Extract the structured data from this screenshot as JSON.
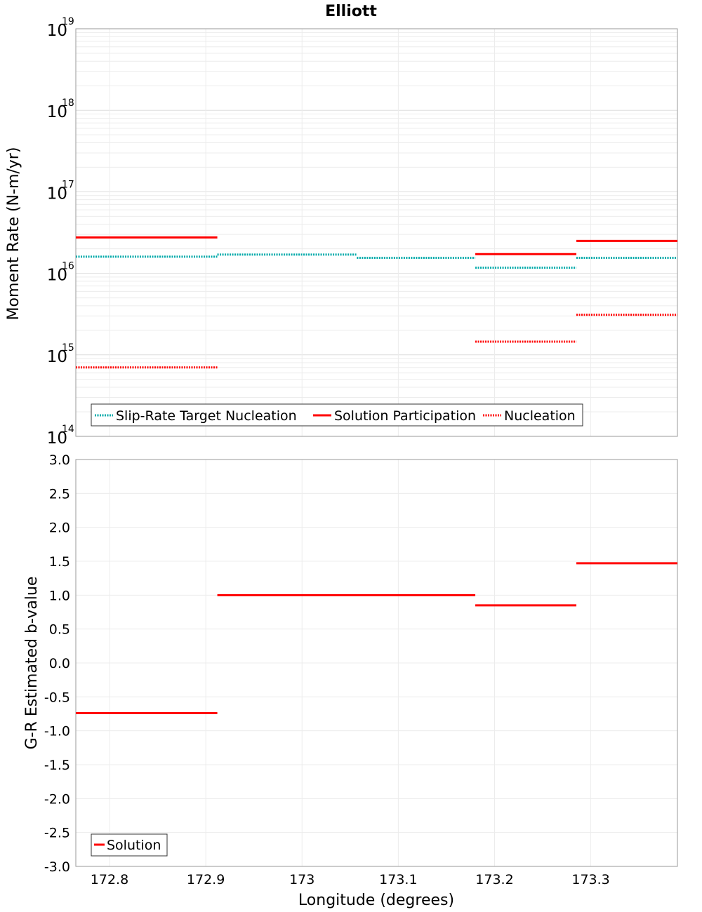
{
  "title": "Elliott",
  "chart_data": [
    {
      "type": "line",
      "step": true,
      "title": "Elliott",
      "xlabel": "",
      "ylabel": "Moment Rate (N-m/yr)",
      "yscale": "log",
      "ylim": [
        100000000000000.0,
        1e+19
      ],
      "xlim": [
        172.765,
        173.39
      ],
      "y_tick_labels": [
        {
          "base": "10",
          "exp": "14",
          "value": 100000000000000.0
        },
        {
          "base": "10",
          "exp": "15",
          "value": 1000000000000000.0
        },
        {
          "base": "10",
          "exp": "16",
          "value": 1e+16
        },
        {
          "base": "10",
          "exp": "17",
          "value": 1e+17
        },
        {
          "base": "10",
          "exp": "18",
          "value": 1e+18
        },
        {
          "base": "10",
          "exp": "19",
          "value": 1e+19
        }
      ],
      "legend_position": "bottom-left",
      "series": [
        {
          "name": "Slip-Rate Target Nucleation",
          "color": "#00aaaa",
          "style": "dotted",
          "segments": [
            {
              "x0": 172.765,
              "x1": 172.912,
              "y": 1.6e+16
            },
            {
              "x0": 172.912,
              "x1": 173.057,
              "y": 1.7e+16
            },
            {
              "x0": 173.057,
              "x1": 173.18,
              "y": 1.55e+16
            },
            {
              "x0": 173.18,
              "x1": 173.285,
              "y": 1.17e+16
            },
            {
              "x0": 173.285,
              "x1": 173.39,
              "y": 1.55e+16
            }
          ]
        },
        {
          "name": "Solution Participation",
          "color": "#ff0000",
          "style": "solid",
          "segments": [
            {
              "x0": 172.765,
              "x1": 172.912,
              "y": 2.75e+16
            },
            {
              "x0": 173.18,
              "x1": 173.285,
              "y": 1.72e+16
            },
            {
              "x0": 173.285,
              "x1": 173.39,
              "y": 2.5e+16
            }
          ]
        },
        {
          "name": "Nucleation",
          "color": "#ff0000",
          "style": "dotted",
          "segments": [
            {
              "x0": 172.765,
              "x1": 172.912,
              "y": 700000000000000.0
            },
            {
              "x0": 173.18,
              "x1": 173.285,
              "y": 1450000000000000.0
            },
            {
              "x0": 173.285,
              "x1": 173.39,
              "y": 3100000000000000.0
            }
          ]
        }
      ]
    },
    {
      "type": "line",
      "step": true,
      "xlabel": "Longitude (degrees)",
      "ylabel": "G-R Estimated b-value",
      "ylim": [
        -3.0,
        3.0
      ],
      "xlim": [
        172.765,
        173.39
      ],
      "x_tick_values": [
        172.8,
        172.9,
        173.0,
        173.1,
        173.2,
        173.3
      ],
      "x_tick_labels": [
        "172.8",
        "172.9",
        "173",
        "173.1",
        "173.2",
        "173.3"
      ],
      "y_tick_values": [
        -3.0,
        -2.5,
        -2.0,
        -1.5,
        -1.0,
        -0.5,
        0.0,
        0.5,
        1.0,
        1.5,
        2.0,
        2.5,
        3.0
      ],
      "y_tick_labels": [
        "-3.0",
        "-2.5",
        "-2.0",
        "-1.5",
        "-1.0",
        "-0.5",
        "0.0",
        "0.5",
        "1.0",
        "1.5",
        "2.0",
        "2.5",
        "3.0"
      ],
      "legend_position": "bottom-left",
      "series": [
        {
          "name": "Solution",
          "color": "#ff0000",
          "style": "solid",
          "segments": [
            {
              "x0": 172.765,
              "x1": 172.912,
              "y": -0.74
            },
            {
              "x0": 172.912,
              "x1": 173.18,
              "y": 1.0
            },
            {
              "x0": 173.18,
              "x1": 173.285,
              "y": 0.85
            },
            {
              "x0": 173.285,
              "x1": 173.39,
              "y": 1.47
            }
          ]
        }
      ]
    }
  ]
}
